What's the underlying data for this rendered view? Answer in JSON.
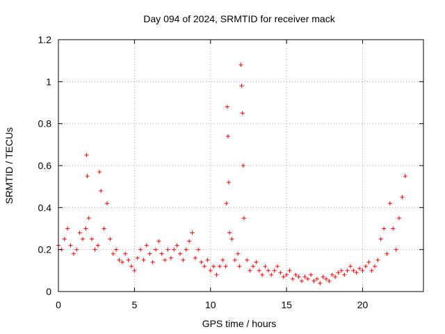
{
  "chart_data": {
    "type": "scatter",
    "title": "Day 094 of 2024, SRMTID for receiver mack",
    "xlabel": "GPS time / hours",
    "ylabel": "SRMTID / TECUs",
    "xlim": [
      0,
      24
    ],
    "ylim": [
      0,
      1.2
    ],
    "xticks": [
      0,
      5,
      10,
      15,
      20
    ],
    "xtick_labels": [
      "0",
      "5",
      "10",
      "15",
      "20"
    ],
    "yticks": [
      0,
      0.2,
      0.4,
      0.6,
      0.8,
      1.0,
      1.2
    ],
    "ytick_labels": [
      "0",
      "0.2",
      "0.4",
      "0.6",
      "0.8",
      "1",
      "1.2"
    ],
    "grid": true,
    "marker": "+",
    "series": [
      {
        "name": "SRMTID",
        "color": "#ff0000",
        "x": [
          0.0,
          0.2,
          0.4,
          0.6,
          0.8,
          1.0,
          1.2,
          1.4,
          1.6,
          1.8,
          1.85,
          1.9,
          2.0,
          2.2,
          2.4,
          2.6,
          2.7,
          2.8,
          3.0,
          3.2,
          3.4,
          3.6,
          3.8,
          4.0,
          4.2,
          4.4,
          4.6,
          4.8,
          5.0,
          5.2,
          5.4,
          5.6,
          5.8,
          6.0,
          6.2,
          6.4,
          6.6,
          6.8,
          7.0,
          7.2,
          7.4,
          7.6,
          7.8,
          8.0,
          8.2,
          8.4,
          8.6,
          8.8,
          9.0,
          9.2,
          9.4,
          9.6,
          9.8,
          10.0,
          10.2,
          10.4,
          10.6,
          10.8,
          11.0,
          11.05,
          11.1,
          11.15,
          11.2,
          11.25,
          11.4,
          11.6,
          11.8,
          11.9,
          12.0,
          12.05,
          12.1,
          12.15,
          12.2,
          12.4,
          12.6,
          12.8,
          13.0,
          13.2,
          13.4,
          13.6,
          13.8,
          14.0,
          14.2,
          14.4,
          14.6,
          14.8,
          15.0,
          15.2,
          15.4,
          15.6,
          15.8,
          16.0,
          16.2,
          16.4,
          16.6,
          16.8,
          17.0,
          17.2,
          17.4,
          17.6,
          17.8,
          18.0,
          18.2,
          18.4,
          18.6,
          18.8,
          19.0,
          19.2,
          19.4,
          19.6,
          19.8,
          20.0,
          20.2,
          20.4,
          20.6,
          20.8,
          21.0,
          21.2,
          21.4,
          21.6,
          21.8,
          22.0,
          22.2,
          22.4,
          22.6,
          22.8
        ],
        "y": [
          0.22,
          0.2,
          0.25,
          0.3,
          0.22,
          0.18,
          0.2,
          0.28,
          0.25,
          0.3,
          0.65,
          0.55,
          0.35,
          0.25,
          0.2,
          0.22,
          0.57,
          0.48,
          0.3,
          0.42,
          0.25,
          0.18,
          0.2,
          0.15,
          0.14,
          0.18,
          0.15,
          0.12,
          0.1,
          0.16,
          0.2,
          0.15,
          0.22,
          0.18,
          0.14,
          0.2,
          0.24,
          0.18,
          0.15,
          0.2,
          0.16,
          0.2,
          0.22,
          0.18,
          0.15,
          0.2,
          0.24,
          0.28,
          0.16,
          0.2,
          0.14,
          0.12,
          0.15,
          0.1,
          0.12,
          0.08,
          0.12,
          0.15,
          0.12,
          0.42,
          0.88,
          0.74,
          0.52,
          0.28,
          0.25,
          0.15,
          0.18,
          0.12,
          1.08,
          0.98,
          0.85,
          0.6,
          0.35,
          0.15,
          0.1,
          0.12,
          0.14,
          0.1,
          0.08,
          0.12,
          0.1,
          0.08,
          0.1,
          0.12,
          0.09,
          0.07,
          0.08,
          0.1,
          0.06,
          0.08,
          0.07,
          0.05,
          0.07,
          0.06,
          0.08,
          0.05,
          0.06,
          0.04,
          0.07,
          0.06,
          0.05,
          0.08,
          0.07,
          0.09,
          0.1,
          0.08,
          0.1,
          0.12,
          0.1,
          0.09,
          0.11,
          0.1,
          0.12,
          0.14,
          0.1,
          0.12,
          0.15,
          0.25,
          0.3,
          0.18,
          0.42,
          0.3,
          0.2,
          0.35,
          0.45,
          0.55
        ]
      }
    ]
  }
}
